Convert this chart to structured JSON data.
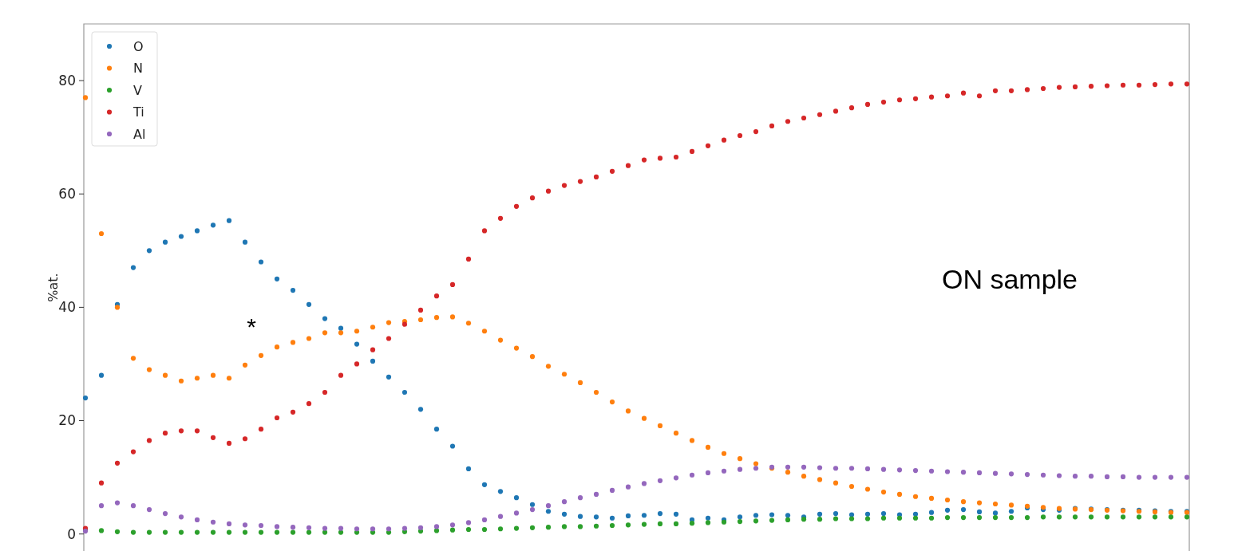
{
  "chart_data": {
    "type": "scatter",
    "ylabel": "%at.",
    "annotations": [
      "*",
      "ON sample"
    ],
    "categories": [
      null,
      null,
      null,
      null,
      null,
      null,
      null,
      null,
      null,
      null,
      null,
      null,
      null,
      null,
      null,
      null,
      null,
      null,
      null,
      null,
      null,
      null,
      null,
      null,
      null,
      null,
      null,
      null,
      null,
      null,
      null,
      null,
      null,
      null,
      null,
      null,
      null,
      null,
      null,
      null,
      null,
      null,
      null,
      null,
      null,
      null,
      null,
      null,
      null,
      null,
      null,
      null,
      null,
      null,
      null,
      null,
      null,
      null,
      null,
      null,
      null,
      null,
      null,
      null,
      null,
      null,
      null,
      null,
      null,
      null
    ],
    "ylim": [
      -3,
      90
    ],
    "yticks": [
      0,
      20,
      40,
      60,
      80
    ],
    "tick_labels": "y",
    "legend": "top left",
    "marker": "circle",
    "series": [
      {
        "name": "O",
        "color": "#1f77b4",
        "values": [
          24,
          28,
          40.5,
          47,
          50,
          51.5,
          52.5,
          53.5,
          54.5,
          55.3,
          51.5,
          48,
          45,
          43,
          40.5,
          38,
          36.3,
          33.5,
          30.5,
          27.7,
          25,
          22,
          18.5,
          15.5,
          11.5,
          8.7,
          7.5,
          6.4,
          5.2,
          4,
          3.5,
          3.1,
          3.0,
          2.8,
          3.2,
          3.3,
          3.6,
          3.5,
          2.5,
          2.8,
          2.5,
          3.0,
          3.3,
          3.4,
          3.3,
          3.0,
          3.5,
          3.6,
          3.4,
          3.5,
          3.6,
          3.4,
          3.5,
          3.8,
          4.2,
          4.3,
          3.9,
          3.7,
          4.0,
          4.6,
          4.3,
          4.2,
          4.5,
          4.4,
          4.3,
          4.2,
          4.2,
          4.1,
          4.0,
          4.0
        ]
      },
      {
        "name": "N",
        "color": "#ff7f0e",
        "values": [
          77,
          53,
          40,
          31,
          29,
          28,
          27,
          27.5,
          28,
          27.5,
          29.8,
          31.5,
          33,
          33.8,
          34.5,
          35.5,
          35.5,
          35.8,
          36.5,
          37.3,
          37.5,
          37.8,
          38.2,
          38.3,
          37.2,
          35.8,
          34.2,
          32.8,
          31.3,
          29.6,
          28.2,
          26.7,
          25,
          23.3,
          21.7,
          20.4,
          19.1,
          17.8,
          16.5,
          15.3,
          14.2,
          13.3,
          12.4,
          11.6,
          10.9,
          10.2,
          9.6,
          9,
          8.4,
          7.9,
          7.4,
          7,
          6.6,
          6.3,
          6,
          5.7,
          5.5,
          5.3,
          5.1,
          4.9,
          4.7,
          4.5,
          4.4,
          4.3,
          4.2,
          4.1,
          4,
          3.9,
          3.8,
          3.8
        ]
      },
      {
        "name": "V",
        "color": "#2ca02c",
        "values": [
          0.8,
          0.6,
          0.4,
          0.3,
          0.3,
          0.3,
          0.3,
          0.3,
          0.3,
          0.3,
          0.3,
          0.3,
          0.3,
          0.3,
          0.3,
          0.3,
          0.3,
          0.3,
          0.3,
          0.3,
          0.4,
          0.5,
          0.6,
          0.7,
          0.8,
          0.8,
          0.9,
          1.0,
          1.1,
          1.2,
          1.3,
          1.3,
          1.4,
          1.5,
          1.6,
          1.7,
          1.8,
          1.8,
          1.9,
          2.0,
          2.1,
          2.2,
          2.3,
          2.4,
          2.5,
          2.6,
          2.6,
          2.7,
          2.7,
          2.7,
          2.8,
          2.8,
          2.8,
          2.8,
          2.9,
          2.9,
          2.9,
          2.9,
          2.9,
          2.9,
          3.0,
          3.0,
          3.0,
          3.0,
          3.0,
          3.0,
          3.0,
          3.0,
          3.0,
          3.0
        ]
      },
      {
        "name": "Ti",
        "color": "#d62728",
        "values": [
          1,
          9,
          12.5,
          14.5,
          16.5,
          17.8,
          18.2,
          18.2,
          17,
          16,
          16.8,
          18.5,
          20.5,
          21.5,
          23,
          25,
          28,
          30,
          32.5,
          34.5,
          37,
          39.5,
          42,
          44,
          48.5,
          53.5,
          55.7,
          57.8,
          59.3,
          60.5,
          61.5,
          62.2,
          63,
          64,
          65,
          66,
          66.3,
          66.5,
          67.5,
          68.5,
          69.5,
          70.3,
          71,
          72,
          72.8,
          73.4,
          74,
          74.6,
          75.2,
          75.8,
          76.2,
          76.6,
          76.8,
          77.1,
          77.3,
          77.8,
          77.3,
          78.2,
          78.2,
          78.4,
          78.6,
          78.8,
          78.9,
          79,
          79.1,
          79.2,
          79.2,
          79.3,
          79.4,
          79.4
        ]
      },
      {
        "name": "Al",
        "color": "#9467bd",
        "values": [
          0.5,
          5,
          5.5,
          5,
          4.3,
          3.6,
          3,
          2.5,
          2.1,
          1.8,
          1.6,
          1.5,
          1.3,
          1.2,
          1.1,
          1,
          1,
          0.9,
          0.9,
          0.9,
          1,
          1.1,
          1.3,
          1.6,
          2,
          2.5,
          3.1,
          3.7,
          4.3,
          5,
          5.7,
          6.4,
          7,
          7.7,
          8.3,
          8.9,
          9.4,
          9.9,
          10.4,
          10.8,
          11.1,
          11.4,
          11.6,
          11.8,
          11.8,
          11.8,
          11.7,
          11.6,
          11.6,
          11.5,
          11.4,
          11.3,
          11.2,
          11.1,
          11,
          10.9,
          10.8,
          10.7,
          10.6,
          10.5,
          10.4,
          10.3,
          10.2,
          10.2,
          10.1,
          10.1,
          10,
          10,
          10,
          10
        ]
      }
    ]
  }
}
